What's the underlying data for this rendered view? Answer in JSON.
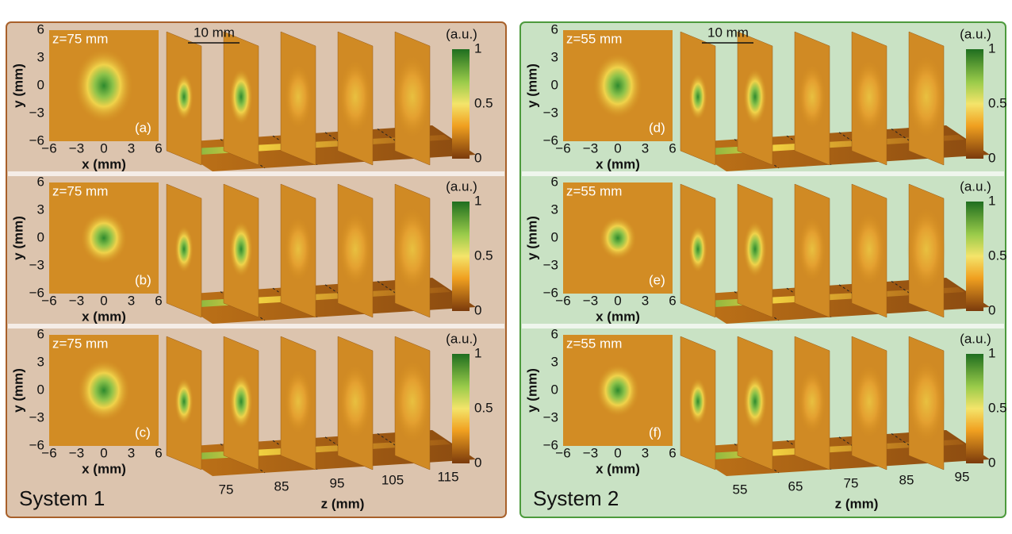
{
  "panels": [
    {
      "title": "System 1",
      "rows": [
        {
          "z_label": "z=75 mm",
          "letter": "(a)"
        },
        {
          "z_label": "z=75 mm",
          "letter": "(b)"
        },
        {
          "z_label": "z=75 mm",
          "letter": "(c)"
        }
      ],
      "scale_bar": "10 mm",
      "z_ticks": [
        "75",
        "85",
        "95",
        "105",
        "115"
      ],
      "z_axis_label": "z (mm)"
    },
    {
      "title": "System 2",
      "rows": [
        {
          "z_label": "z=55 mm",
          "letter": "(d)"
        },
        {
          "z_label": "z=55 mm",
          "letter": "(e)"
        },
        {
          "z_label": "z=55 mm",
          "letter": "(f)"
        }
      ],
      "scale_bar": "10 mm",
      "z_ticks": [
        "55",
        "65",
        "75",
        "85",
        "95"
      ],
      "z_axis_label": "z (mm)"
    }
  ],
  "x_ticks": [
    "−6",
    "−3",
    "0",
    "3",
    "6"
  ],
  "y_ticks": [
    "6",
    "3",
    "0",
    "−3",
    "−6"
  ],
  "x_axis_label": "x (mm)",
  "y_axis_label": "y (mm)",
  "colorbar_unit": "(a.u.)",
  "colorbar_ticks": [
    "1",
    "0.5",
    "0"
  ]
}
